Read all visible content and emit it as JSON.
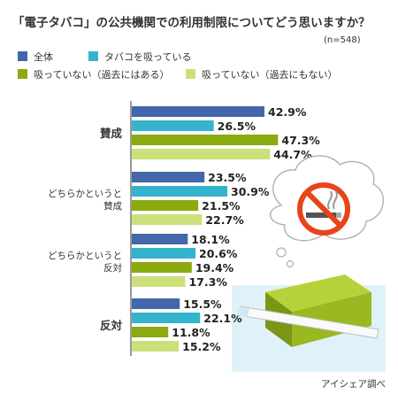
{
  "chart_data": {
    "type": "bar",
    "title": "「電子タバコ」の公共機関での利用制限についてどう思いますか？",
    "note": "(n=548)",
    "categories": [
      [
        "賛成"
      ],
      [
        "どちらかというと",
        "賛成"
      ],
      [
        "どちらかというと",
        "反対"
      ],
      [
        "反対"
      ]
    ],
    "series": [
      {
        "name": "全体",
        "values": [
          42.9,
          23.5,
          18.1,
          15.5
        ]
      },
      {
        "name": "タバコを吸っている",
        "values": [
          26.5,
          30.9,
          20.6,
          22.1
        ]
      },
      {
        "name": "吸っていない（過去にはある）",
        "values": [
          47.3,
          21.5,
          19.4,
          11.8
        ]
      },
      {
        "name": "吸っていない（過去にもない）",
        "values": [
          44.7,
          22.7,
          17.3,
          15.2
        ]
      }
    ],
    "value_suffix": "%",
    "xlim": [
      0,
      55
    ],
    "orientation": "horizontal",
    "legend_position": "top",
    "grid": false
  },
  "colors": {
    "series": [
      "#4466aa",
      "#33b3cc",
      "#8aaa10",
      "#cce07a"
    ],
    "axis": "#555555",
    "bubble": "#ffffff",
    "bubble_stroke": "#b0b0b0",
    "no_smoking_red": "#e8441a",
    "box_green": "#9ab820",
    "box_dark": "#6f8a12",
    "panel": "#dff2fa"
  },
  "icons": [
    "no-smoking-icon",
    "thought-bubble-icon",
    "ecig-box-icon",
    "ecig-stick-icon"
  ],
  "footer": {
    "credit": "アイシェア調べ"
  }
}
